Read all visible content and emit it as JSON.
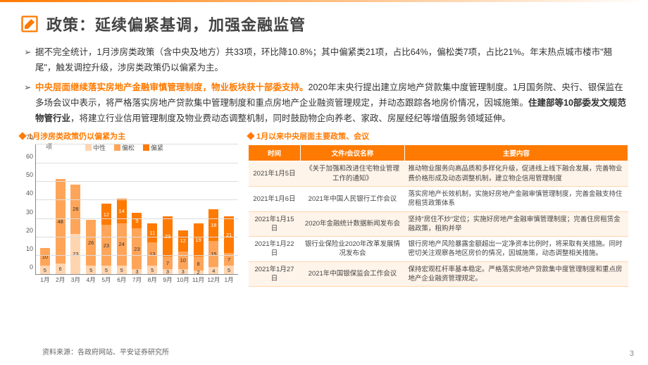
{
  "title": "政策：延续偏紧基调，加强金融监管",
  "bullets": [
    {
      "plain": "据不完全统计，1月涉房类政策（含中央及地方）共33项，环比降10.8%；其中偏紧类21项，占比64%，偏松类7项，占比21%。年末热点城市楼市\"翘尾\"，触发调控升级，涉房类政策仍以偏紧为主。"
    },
    {
      "lead": "中央层面继续落实房地产金融审慎管理制度，物业板块获十部委支持。",
      "rest1": "2020年末央行提出建立房地产贷款集中度管理制度。1月国务院、央行、银保监在多场会议中表示，将严格落实房地产贷款集中管理制度和重点房地产企业融资管理规定，并动态跟踪各地房价情况，因城施策。",
      "bold": "住建部等10部委发文规范物管行业",
      "rest2": "，将建立行业信用管理制度及物业费动态调整机制，同时鼓励物企向养老、家政、房屋经纪等增值服务领域延伸。"
    }
  ],
  "chart": {
    "caption": "1月涉房类政策仍以偏紧为主",
    "unit": "项",
    "ylim": [
      0,
      70
    ],
    "yticks": [
      0,
      10,
      20,
      30,
      40,
      50,
      60,
      70
    ],
    "series": [
      {
        "name": "中性",
        "color": "#ffd5b0"
      },
      {
        "name": "偏松",
        "color": "#ffa559"
      },
      {
        "name": "偏紧",
        "color": "#ff7a00"
      }
    ],
    "categories": [
      "1月",
      "2月",
      "3月",
      "4月",
      "5月",
      "6月",
      "7月",
      "8月",
      "9月",
      "10月",
      "11月",
      "12月",
      "1月"
    ],
    "data": {
      "neutral": [
        5,
        6,
        23,
        5,
        5,
        5,
        3,
        5,
        3,
        3,
        2,
        4,
        5
      ],
      "loose": [
        10,
        48,
        28,
        26,
        23,
        24,
        23,
        13,
        7,
        10,
        8,
        15,
        7
      ],
      "tight": [
        0,
        0,
        0,
        0,
        12,
        14,
        9,
        11,
        23,
        12,
        19,
        18,
        21
      ]
    },
    "pxPerUnit": 2.5
  },
  "table": {
    "caption": "1月以来中央层面主要政策、会议",
    "headers": [
      "时间",
      "文件/会议名称",
      "主要内容"
    ],
    "rows": [
      [
        "2021年1月5日",
        "《关于加强和改进住宅物业管理工作的通知》",
        "推动物业服务向高品质和多样化升级，促进线上线下融合发展，完善物业费价格形成及动态调整机制，建立物企信用管理制度"
      ],
      [
        "2021年1月6日",
        "2021年中国人民银行工作会议",
        "落实房地产长效机制，实施好房地产金融审慎管理制度，完善金融支持住房租赁政策体系"
      ],
      [
        "2021年1月15日",
        "2020年金融统计数据新闻发布会",
        "坚持\"房住不炒\"定位；实施好房地产金融审慎管理制度；完善住房租赁金融政策，租购并举"
      ],
      [
        "2021年1月22日",
        "银行业保险业2020年改革发展情况发布会",
        "银行房地产风险暴露金额超出一定净资本比例时，将采取有关措施。同时密切关注观察各地区房价的情况，因城施策，动态调整相关措施。"
      ],
      [
        "2021年1月27日",
        "2021年中国银保监会工作会议",
        "保持宏观杠杆率基本稳定。严格落实房地产贷款集中度管理制度和重点房地产企业融资管理规定。"
      ]
    ]
  },
  "source": "资料来源：各政府网站、平安证券研究所",
  "page": "3"
}
